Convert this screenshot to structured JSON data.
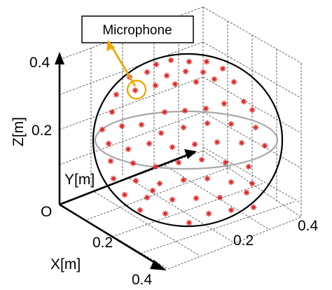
{
  "callout": {
    "label": "Microphone"
  },
  "labels": {
    "origin": "O",
    "x_axis": "X[m]",
    "y_axis": "Y[m]",
    "z_axis": "Z[m]",
    "x_tick_mid": "0.2",
    "x_tick_end": "0.4",
    "y_tick_mid": "0.2",
    "y_tick_end": "0.4",
    "z_tick_mid": "0.2",
    "z_tick_top": "0.4"
  },
  "colors": {
    "microphone": "#e02020",
    "callout": "#f0a800",
    "sphere": "#000000",
    "equator": "#a8a8a8",
    "grid": "#555555"
  }
}
